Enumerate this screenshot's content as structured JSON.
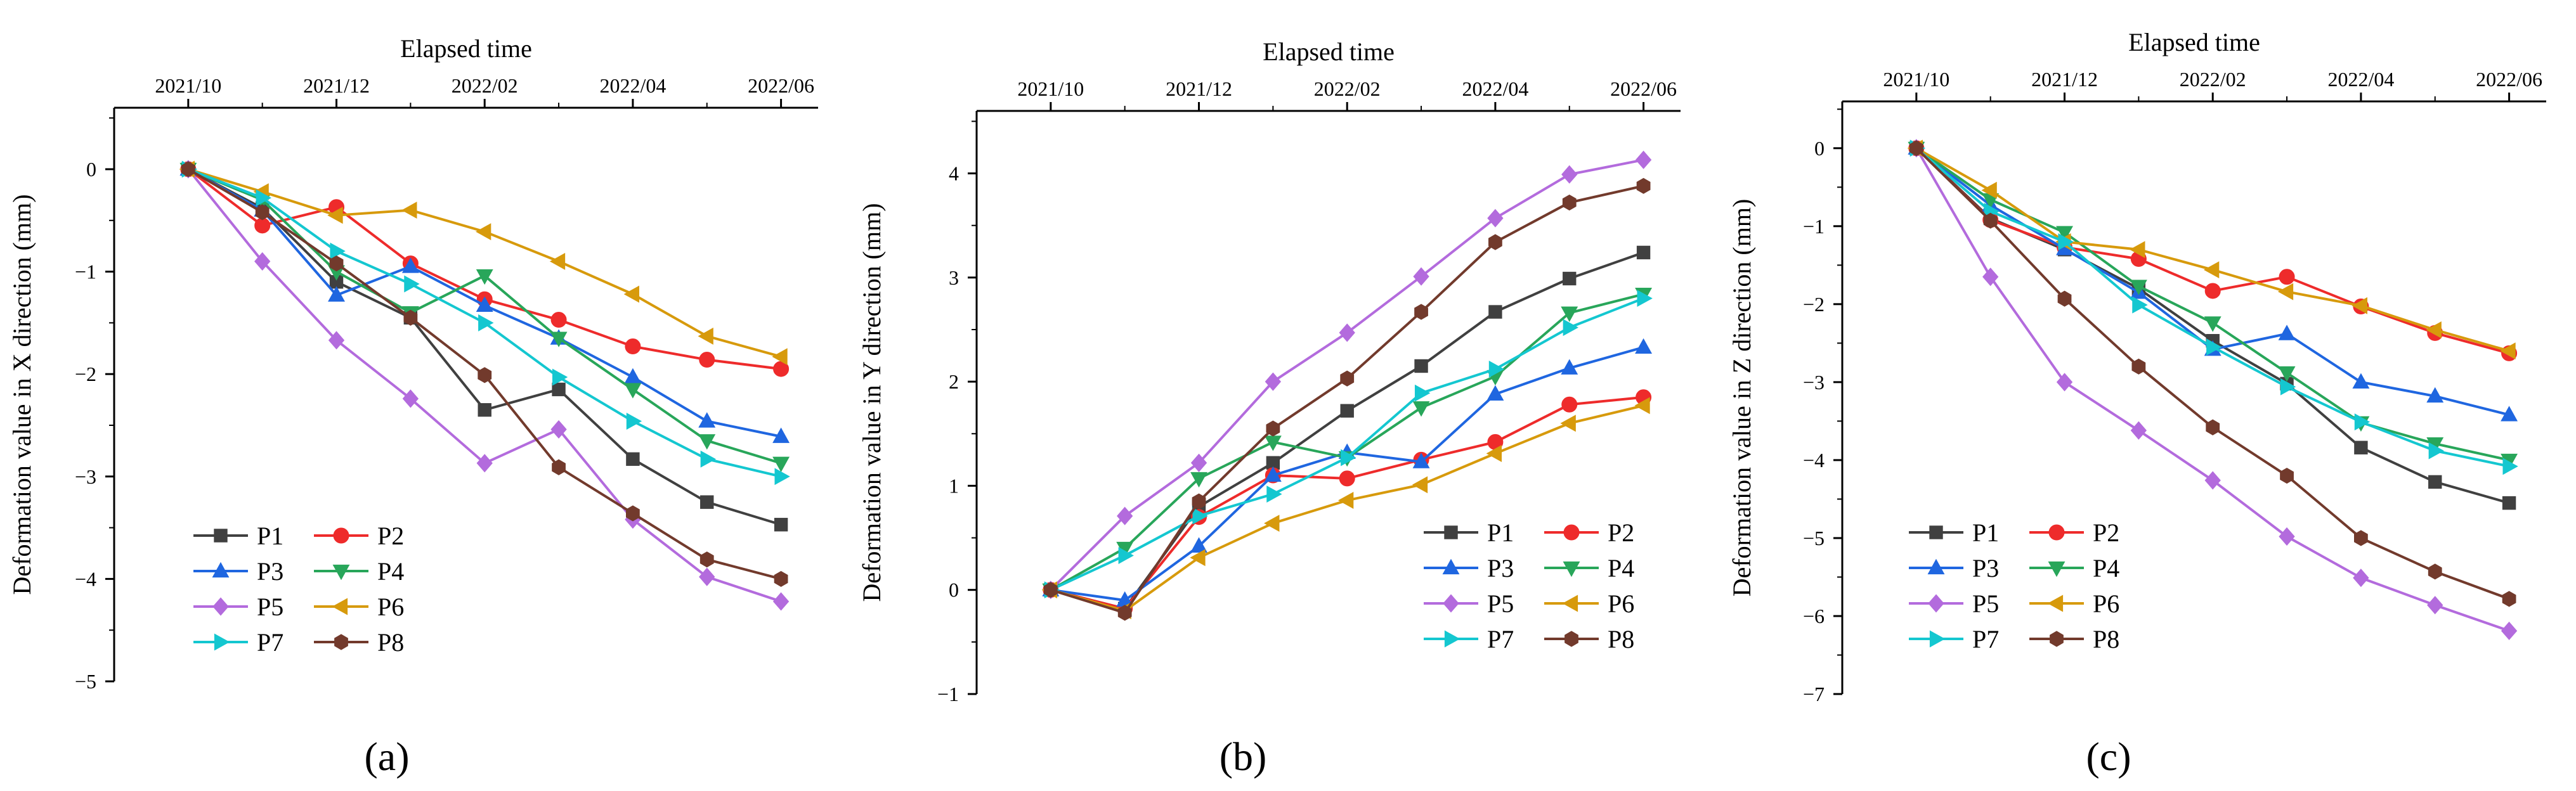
{
  "figure": {
    "panel_labels": [
      "(a)",
      "(b)",
      "(c)"
    ]
  },
  "series_styles": [
    {
      "name": "P1",
      "color": "#404040",
      "marker": "square"
    },
    {
      "name": "P2",
      "color": "#ee2b2b",
      "marker": "circle"
    },
    {
      "name": "P3",
      "color": "#1f66e0",
      "marker": "triangle-up"
    },
    {
      "name": "P4",
      "color": "#28a65a",
      "marker": "triangle-down"
    },
    {
      "name": "P5",
      "color": "#b36bdd",
      "marker": "diamond"
    },
    {
      "name": "P6",
      "color": "#d79a0c",
      "marker": "triangle-left"
    },
    {
      "name": "P7",
      "color": "#14c7d0",
      "marker": "triangle-right"
    },
    {
      "name": "P8",
      "color": "#723a2c",
      "marker": "hexagon"
    }
  ],
  "chart_data": [
    {
      "type": "line",
      "panel": "(a)",
      "title": "",
      "xlabel": "Elapsed time",
      "ylabel": "Deformation value in X direction (mm)",
      "x_ticks": [
        "2021/10",
        "2021/12",
        "2022/02",
        "2022/04",
        "2022/06"
      ],
      "x_tick_positions": [
        0,
        2,
        4,
        6,
        8
      ],
      "x": [
        0,
        1,
        2,
        3,
        4,
        5,
        6,
        7,
        8
      ],
      "xlim": [
        -1,
        8.5
      ],
      "ylim": [
        -5,
        0.6
      ],
      "y_ticks": [
        0,
        -1,
        -2,
        -3,
        -4,
        -5
      ],
      "y_tick_labels": [
        "0",
        "−1",
        "−2",
        "−3",
        "−4",
        "−5"
      ],
      "legend": "lower-left",
      "series": [
        {
          "name": "P1",
          "values": [
            0,
            -0.38,
            -1.1,
            -1.45,
            -2.35,
            -2.15,
            -2.83,
            -3.25,
            -3.47
          ]
        },
        {
          "name": "P2",
          "values": [
            0,
            -0.55,
            -0.37,
            -0.92,
            -1.27,
            -1.47,
            -1.73,
            -1.86,
            -1.95
          ]
        },
        {
          "name": "P3",
          "values": [
            0,
            -0.4,
            -1.23,
            -0.95,
            -1.33,
            -1.65,
            -2.03,
            -2.46,
            -2.61
          ]
        },
        {
          "name": "P4",
          "values": [
            0,
            -0.3,
            -1.0,
            -1.4,
            -1.04,
            -1.65,
            -2.15,
            -2.65,
            -2.87
          ]
        },
        {
          "name": "P5",
          "values": [
            0,
            -0.9,
            -1.67,
            -2.24,
            -2.87,
            -2.54,
            -3.42,
            -3.98,
            -4.22
          ]
        },
        {
          "name": "P6",
          "values": [
            0,
            -0.22,
            -0.45,
            -0.4,
            -0.61,
            -0.9,
            -1.22,
            -1.63,
            -1.83
          ]
        },
        {
          "name": "P7",
          "values": [
            0,
            -0.28,
            -0.8,
            -1.12,
            -1.5,
            -2.03,
            -2.46,
            -2.83,
            -3.0
          ]
        },
        {
          "name": "P8",
          "values": [
            0,
            -0.42,
            -0.92,
            -1.45,
            -2.01,
            -2.91,
            -3.36,
            -3.81,
            -4.0
          ]
        }
      ]
    },
    {
      "type": "line",
      "panel": "(b)",
      "title": "",
      "xlabel": "Elapsed time",
      "ylabel": "Deformation value in Y direction (mm)",
      "x_ticks": [
        "2021/10",
        "2021/12",
        "2022/02",
        "2022/04",
        "2022/06"
      ],
      "x_tick_positions": [
        0,
        2,
        4,
        6,
        8
      ],
      "x": [
        0,
        1,
        2,
        3,
        4,
        5,
        6,
        7,
        8
      ],
      "xlim": [
        -1,
        8.5
      ],
      "ylim": [
        -1,
        4.6
      ],
      "y_ticks": [
        -1,
        0,
        1,
        2,
        3,
        4
      ],
      "y_tick_labels": [
        "−1",
        "0",
        "1",
        "2",
        "3",
        "4"
      ],
      "legend": "lower-right",
      "series": [
        {
          "name": "P1",
          "values": [
            0,
            -0.18,
            0.8,
            1.22,
            1.72,
            2.15,
            2.67,
            2.99,
            3.24
          ]
        },
        {
          "name": "P2",
          "values": [
            0,
            -0.18,
            0.7,
            1.1,
            1.07,
            1.25,
            1.42,
            1.78,
            1.85
          ]
        },
        {
          "name": "P3",
          "values": [
            0,
            -0.1,
            0.42,
            1.1,
            1.32,
            1.23,
            1.88,
            2.13,
            2.33
          ]
        },
        {
          "name": "P4",
          "values": [
            0,
            0.4,
            1.07,
            1.42,
            1.27,
            1.75,
            2.05,
            2.66,
            2.84
          ]
        },
        {
          "name": "P5",
          "values": [
            0,
            0.71,
            1.22,
            2.0,
            2.47,
            3.01,
            3.57,
            3.99,
            4.13
          ]
        },
        {
          "name": "P6",
          "values": [
            0,
            -0.2,
            0.31,
            0.64,
            0.86,
            1.01,
            1.31,
            1.6,
            1.77
          ]
        },
        {
          "name": "P7",
          "values": [
            0,
            0.33,
            0.71,
            0.92,
            1.27,
            1.89,
            2.12,
            2.52,
            2.8
          ]
        },
        {
          "name": "P8",
          "values": [
            0,
            -0.22,
            0.85,
            1.55,
            2.03,
            2.67,
            3.34,
            3.72,
            3.88
          ]
        }
      ]
    },
    {
      "type": "line",
      "panel": "(c)",
      "title": "",
      "xlabel": "Elapsed time",
      "ylabel": "Deformation value in Z direction (mm)",
      "x_ticks": [
        "2021/10",
        "2021/12",
        "2022/02",
        "2022/04",
        "2022/06"
      ],
      "x_tick_positions": [
        0,
        2,
        4,
        6,
        8
      ],
      "x": [
        0,
        1,
        2,
        3,
        4,
        5,
        6,
        7,
        8
      ],
      "xlim": [
        -1,
        8.5
      ],
      "ylim": [
        -7,
        0.6
      ],
      "y_ticks": [
        0,
        -1,
        -2,
        -3,
        -4,
        -5,
        -6,
        -7
      ],
      "y_tick_labels": [
        "0",
        "−1",
        "−2",
        "−3",
        "−4",
        "−5",
        "−6",
        "−7"
      ],
      "legend": "lower-left",
      "series": [
        {
          "name": "P1",
          "values": [
            0,
            -0.9,
            -1.3,
            -1.8,
            -2.47,
            -3.02,
            -3.84,
            -4.28,
            -4.55
          ]
        },
        {
          "name": "P2",
          "values": [
            0,
            -0.92,
            -1.27,
            -1.42,
            -1.83,
            -1.65,
            -2.03,
            -2.37,
            -2.63
          ]
        },
        {
          "name": "P3",
          "values": [
            0,
            -0.73,
            -1.29,
            -1.85,
            -2.58,
            -2.38,
            -3.0,
            -3.18,
            -3.42
          ]
        },
        {
          "name": "P4",
          "values": [
            0,
            -0.66,
            -1.08,
            -1.77,
            -2.24,
            -2.88,
            -3.52,
            -3.79,
            -4.0
          ]
        },
        {
          "name": "P5",
          "values": [
            0,
            -1.65,
            -3.0,
            -3.62,
            -4.26,
            -4.98,
            -5.51,
            -5.86,
            -6.19
          ]
        },
        {
          "name": "P6",
          "values": [
            0,
            -0.54,
            -1.2,
            -1.3,
            -1.56,
            -1.84,
            -2.02,
            -2.33,
            -2.6
          ]
        },
        {
          "name": "P7",
          "values": [
            0,
            -0.81,
            -1.2,
            -2.01,
            -2.55,
            -3.06,
            -3.51,
            -3.88,
            -4.08
          ]
        },
        {
          "name": "P8",
          "values": [
            0,
            -0.93,
            -1.93,
            -2.8,
            -3.58,
            -4.2,
            -5.0,
            -5.43,
            -5.78
          ]
        }
      ]
    }
  ]
}
